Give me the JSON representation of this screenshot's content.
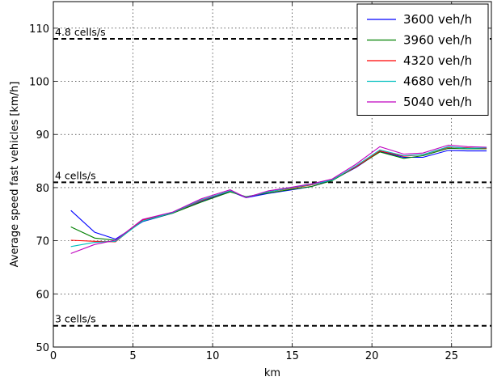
{
  "chart_data": {
    "type": "line",
    "xlabel": "km",
    "ylabel": "Average speed fast vehicles [km/h]",
    "xlim": [
      0,
      27.5
    ],
    "ylim": [
      50,
      115
    ],
    "xticks": [
      0,
      5,
      10,
      15,
      20,
      25
    ],
    "yticks": [
      50,
      60,
      70,
      80,
      90,
      100,
      110
    ],
    "grid": true,
    "legend_position": "top-right",
    "x": [
      1.1,
      2.6,
      3.9,
      5.6,
      7.5,
      9.3,
      11.1,
      12.1,
      13.5,
      15.0,
      16.2,
      17.5,
      19.0,
      20.5,
      22.0,
      23.2,
      24.8,
      26.0,
      27.2
    ],
    "series": [
      {
        "name": "3600 veh/h",
        "color": "#0000ff",
        "values": [
          75.7,
          71.6,
          70.3,
          73.6,
          75.2,
          77.4,
          79.3,
          78.1,
          78.9,
          79.6,
          80.2,
          81.4,
          83.8,
          86.8,
          85.7,
          85.7,
          87.0,
          86.9,
          86.9
        ]
      },
      {
        "name": "3960 veh/h",
        "color": "#008000",
        "values": [
          72.6,
          70.5,
          70.1,
          73.7,
          75.2,
          77.3,
          79.2,
          78.3,
          79.0,
          79.7,
          80.2,
          81.3,
          83.9,
          86.7,
          85.5,
          86.0,
          87.4,
          87.3,
          87.3
        ]
      },
      {
        "name": "4320 veh/h",
        "color": "#ff0000",
        "values": [
          70.1,
          69.9,
          69.8,
          73.9,
          75.3,
          77.6,
          79.4,
          78.2,
          79.2,
          79.9,
          80.5,
          81.5,
          83.9,
          86.9,
          85.9,
          86.2,
          87.6,
          87.5,
          87.4
        ]
      },
      {
        "name": "4680 veh/h",
        "color": "#00bfbf",
        "values": [
          68.9,
          69.7,
          69.9,
          73.7,
          75.3,
          77.7,
          79.4,
          78.2,
          79.2,
          80.0,
          80.6,
          81.4,
          84.1,
          87.1,
          86.0,
          86.2,
          87.7,
          87.4,
          87.5
        ]
      },
      {
        "name": "5040 veh/h",
        "color": "#bf00bf",
        "values": [
          67.6,
          69.3,
          70.1,
          74.0,
          75.4,
          77.9,
          79.6,
          78.1,
          79.4,
          80.1,
          80.7,
          81.6,
          84.4,
          87.7,
          86.3,
          86.5,
          88.0,
          87.7,
          87.6
        ]
      }
    ],
    "reference_lines": [
      {
        "y": 108,
        "label": "4.8 cells/s"
      },
      {
        "y": 81,
        "label": "4 cells/s"
      },
      {
        "y": 54,
        "label": "3 cells/s"
      }
    ]
  }
}
